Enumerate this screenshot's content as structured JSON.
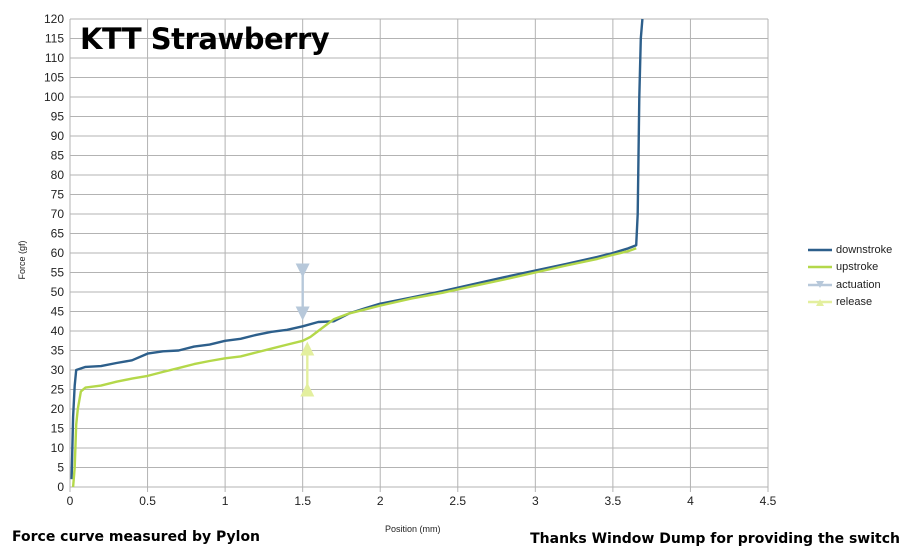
{
  "chart_data": {
    "type": "line",
    "title": "KTT Strawberry",
    "xlabel": "Position (mm)",
    "ylabel": "Force (gf)",
    "xlim": [
      0,
      4.5
    ],
    "ylim": [
      0,
      120
    ],
    "xticks": [
      "0",
      "0.5",
      "1",
      "1.5",
      "2",
      "2.5",
      "3",
      "3.5",
      "4",
      "4.5"
    ],
    "yticks": [
      "0",
      "5",
      "10",
      "15",
      "20",
      "25",
      "30",
      "35",
      "40",
      "45",
      "50",
      "55",
      "60",
      "65",
      "70",
      "75",
      "80",
      "85",
      "90",
      "95",
      "100",
      "105",
      "110",
      "115",
      "120"
    ],
    "grid": true,
    "legend_position": "right",
    "series": [
      {
        "name": "downstroke",
        "color": "#2d5f8b",
        "x": [
          0.01,
          0.02,
          0.03,
          0.04,
          0.1,
          0.2,
          0.3,
          0.4,
          0.5,
          0.6,
          0.7,
          0.8,
          0.9,
          1.0,
          1.1,
          1.2,
          1.3,
          1.4,
          1.5,
          1.6,
          1.7,
          1.8,
          1.9,
          2.0,
          2.2,
          2.4,
          2.6,
          2.8,
          3.0,
          3.2,
          3.4,
          3.5,
          3.6,
          3.65,
          3.66,
          3.67,
          3.68,
          3.69
        ],
        "y": [
          2,
          18,
          26,
          30,
          30.8,
          31,
          31.8,
          32.5,
          34.2,
          34.8,
          35,
          36,
          36.5,
          37.5,
          38,
          39,
          39.8,
          40.3,
          41.2,
          42.3,
          42.5,
          44.5,
          45.8,
          47,
          48.6,
          50.2,
          52,
          53.8,
          55.5,
          57.2,
          59,
          60,
          61.2,
          62,
          70,
          100,
          115,
          120
        ]
      },
      {
        "name": "upstroke",
        "color": "#b4d84a",
        "x": [
          0.02,
          0.03,
          0.04,
          0.05,
          0.07,
          0.1,
          0.2,
          0.3,
          0.4,
          0.5,
          0.6,
          0.7,
          0.8,
          0.9,
          1.0,
          1.1,
          1.2,
          1.3,
          1.4,
          1.5,
          1.55,
          1.6,
          1.7,
          1.8,
          1.9,
          2.0,
          2.2,
          2.4,
          2.6,
          2.8,
          3.0,
          3.2,
          3.4,
          3.5,
          3.6,
          3.65
        ],
        "y": [
          0,
          5,
          16,
          20,
          24.5,
          25.5,
          26,
          27,
          27.8,
          28.5,
          29.5,
          30.5,
          31.5,
          32.3,
          33,
          33.5,
          34.5,
          35.5,
          36.5,
          37.5,
          38.5,
          40,
          43,
          44.5,
          45.5,
          46.5,
          48.3,
          49.8,
          51.5,
          53.2,
          55,
          56.8,
          58.5,
          59.5,
          60.5,
          61.2
        ]
      },
      {
        "name": "actuation",
        "color": "#b7c8da",
        "marker": "triangle-down",
        "x": [
          1.5,
          1.5
        ],
        "y": [
          55.5,
          44.5
        ]
      },
      {
        "name": "release",
        "color": "#e3ef9e",
        "marker": "triangle-up",
        "x": [
          1.53,
          1.53
        ],
        "y": [
          25,
          35.5
        ]
      }
    ],
    "annotations": [
      "Force curve measured by Pylon",
      "Thanks Window Dump for providing the switch"
    ]
  }
}
